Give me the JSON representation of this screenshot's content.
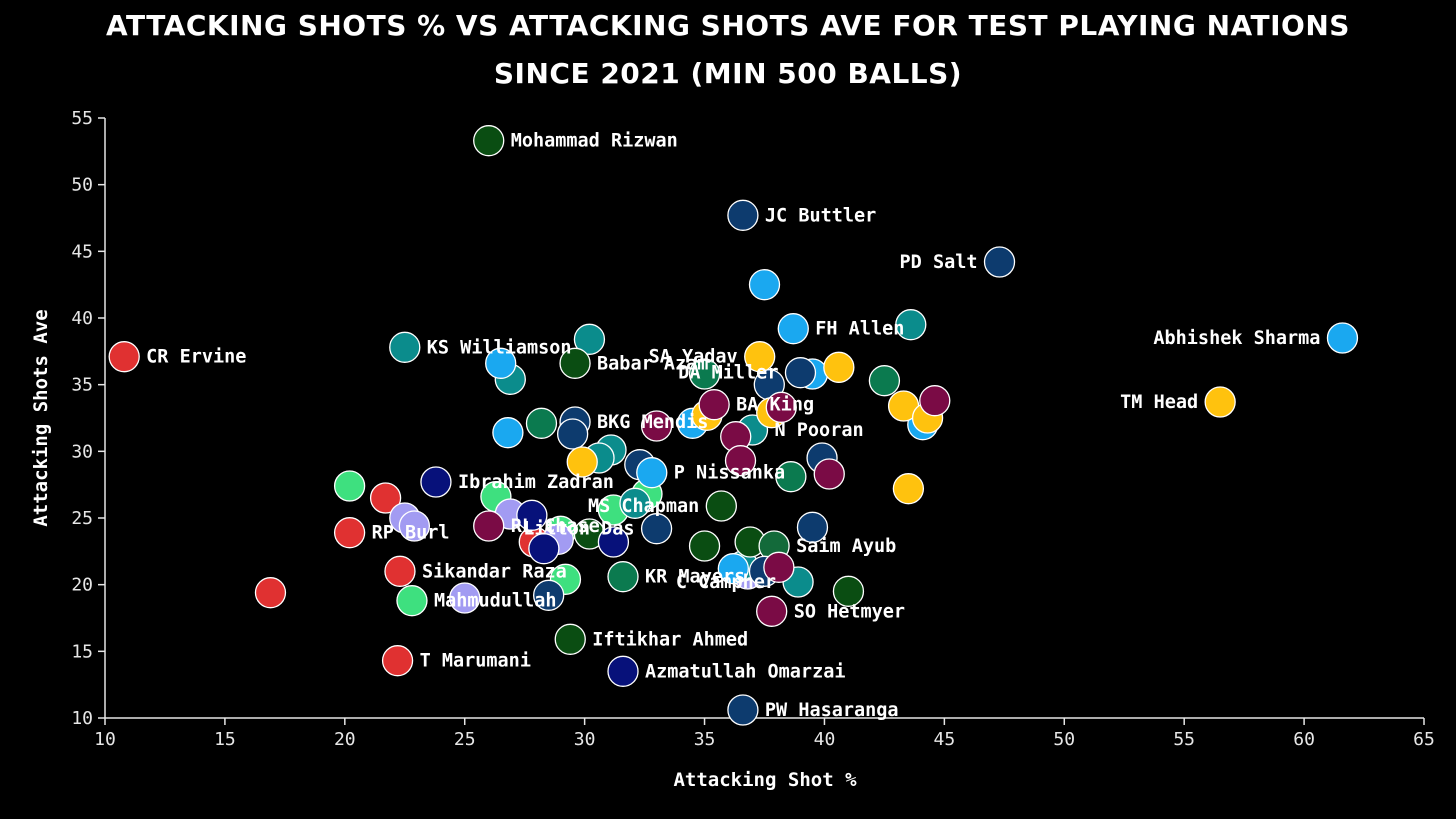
{
  "chart_data": {
    "type": "scatter",
    "title": "ATTACKING SHOTS  % VS ATTACKING SHOTS AVE FOR TEST PLAYING NATIONS SINCE 2021 (MIN 500 BALLS)",
    "xlabel": "Attacking Shot %",
    "ylabel": "Attacking Shots Ave",
    "xlim": [
      10,
      65
    ],
    "ylim": [
      10,
      55
    ],
    "x_ticks": [
      "10",
      "15",
      "20",
      "25",
      "30",
      "35",
      "40",
      "45",
      "50",
      "55",
      "60",
      "65"
    ],
    "y_ticks": [
      "10",
      "15",
      "20",
      "25",
      "30",
      "35",
      "40",
      "45",
      "50",
      "55"
    ],
    "grid": false,
    "legend": "none",
    "colors": {
      "zimbabwe": "#e03131",
      "afghanistan": "#07117a",
      "india": "#ffc20e",
      "england": "#0d3b6e",
      "australia": "#1aa8f0",
      "new_zealand": "#0b8c8c",
      "pakistan": "#0a4d12",
      "bangladesh": "#0b7a4f",
      "west_indies": "#7a0b45",
      "ireland": "#3ee07f",
      "south_africa": "#136a3a",
      "sri_lanka": "#a29bf2"
    },
    "points": [
      {
        "x": 10.8,
        "y": 37.1,
        "color": "#e03131",
        "label": "CR Ervine",
        "pos": "right"
      },
      {
        "x": 16.9,
        "y": 19.4,
        "color": "#e03131",
        "label": "",
        "pos": "right"
      },
      {
        "x": 20.2,
        "y": 23.9,
        "color": "#e03131",
        "label": "RP Burl",
        "pos": "right"
      },
      {
        "x": 21.7,
        "y": 26.5,
        "color": "#e03131",
        "label": "",
        "pos": "right"
      },
      {
        "x": 22.3,
        "y": 21.0,
        "color": "#e03131",
        "label": "Sikandar Raza",
        "pos": "right"
      },
      {
        "x": 22.2,
        "y": 14.3,
        "color": "#e03131",
        "label": "T Marumani",
        "pos": "right"
      },
      {
        "x": 27.9,
        "y": 23.2,
        "color": "#e03131",
        "label": "",
        "pos": "right"
      },
      {
        "x": 20.2,
        "y": 27.4,
        "color": "#3ee07f",
        "label": "",
        "pos": "right"
      },
      {
        "x": 22.8,
        "y": 18.8,
        "color": "#3ee07f",
        "label": "Mahmudullah",
        "pos": "right"
      },
      {
        "x": 26.3,
        "y": 26.6,
        "color": "#3ee07f",
        "label": "",
        "pos": "right"
      },
      {
        "x": 29.2,
        "y": 20.4,
        "color": "#3ee07f",
        "label": "",
        "pos": "right"
      },
      {
        "x": 31.2,
        "y": 25.6,
        "color": "#3ee07f",
        "label": "",
        "pos": "right"
      },
      {
        "x": 32.6,
        "y": 26.8,
        "color": "#3ee07f",
        "label": "",
        "pos": "right"
      },
      {
        "x": 29.0,
        "y": 24.0,
        "color": "#3ee07f",
        "label": "",
        "pos": "right"
      },
      {
        "x": 22.5,
        "y": 25.0,
        "color": "#a29bf2",
        "label": "",
        "pos": "right"
      },
      {
        "x": 22.9,
        "y": 24.4,
        "color": "#a29bf2",
        "label": "",
        "pos": "right"
      },
      {
        "x": 25.0,
        "y": 19.0,
        "color": "#a29bf2",
        "label": "",
        "pos": "right"
      },
      {
        "x": 26.9,
        "y": 25.3,
        "color": "#a29bf2",
        "label": "",
        "pos": "right"
      },
      {
        "x": 28.9,
        "y": 23.4,
        "color": "#a29bf2",
        "label": "",
        "pos": "right"
      },
      {
        "x": 36.8,
        "y": 20.8,
        "color": "#a29bf2",
        "label": "",
        "pos": "right"
      },
      {
        "x": 22.5,
        "y": 37.8,
        "color": "#0b8c8c",
        "label": "KS Williamson",
        "pos": "right"
      },
      {
        "x": 26.9,
        "y": 35.4,
        "color": "#0b8c8c",
        "label": "",
        "pos": "right"
      },
      {
        "x": 30.2,
        "y": 38.4,
        "color": "#0b8c8c",
        "label": "",
        "pos": "right"
      },
      {
        "x": 31.1,
        "y": 30.1,
        "color": "#0b8c8c",
        "label": "",
        "pos": "right"
      },
      {
        "x": 30.6,
        "y": 29.5,
        "color": "#0b8c8c",
        "label": "",
        "pos": "right"
      },
      {
        "x": 32.1,
        "y": 26.1,
        "color": "#0b8c8c",
        "label": "",
        "pos": "right"
      },
      {
        "x": 37.0,
        "y": 31.6,
        "color": "#0b8c8c",
        "label": "N Pooran",
        "pos": "right"
      },
      {
        "x": 38.9,
        "y": 20.2,
        "color": "#0b8c8c",
        "label": "C Campher",
        "pos": "left"
      },
      {
        "x": 43.6,
        "y": 39.5,
        "color": "#0b8c8c",
        "label": "",
        "pos": "right"
      },
      {
        "x": 36.6,
        "y": 21.4,
        "color": "#0b8c8c",
        "label": "",
        "pos": "right"
      },
      {
        "x": 26.0,
        "y": 53.3,
        "color": "#0a4d12",
        "label": "Mohammad Rizwan",
        "pos": "right"
      },
      {
        "x": 29.6,
        "y": 36.6,
        "color": "#0a4d12",
        "label": "Babar Azam",
        "pos": "right"
      },
      {
        "x": 30.2,
        "y": 23.8,
        "color": "#0a4d12",
        "label": "",
        "pos": "right"
      },
      {
        "x": 29.4,
        "y": 15.9,
        "color": "#0a4d12",
        "label": "Iftikhar Ahmed",
        "pos": "right"
      },
      {
        "x": 35.0,
        "y": 22.9,
        "color": "#0a4d12",
        "label": "",
        "pos": "right"
      },
      {
        "x": 35.7,
        "y": 25.9,
        "color": "#0a4d12",
        "label": "MS Chapman",
        "pos": "left"
      },
      {
        "x": 36.9,
        "y": 23.2,
        "color": "#0a4d12",
        "label": "",
        "pos": "right"
      },
      {
        "x": 41.0,
        "y": 19.5,
        "color": "#0a4d12",
        "label": "",
        "pos": "right"
      },
      {
        "x": 28.2,
        "y": 32.1,
        "color": "#0b7a4f",
        "label": "",
        "pos": "right"
      },
      {
        "x": 31.6,
        "y": 20.6,
        "color": "#0b7a4f",
        "label": "KR Mayers",
        "pos": "right"
      },
      {
        "x": 35.0,
        "y": 35.8,
        "color": "#0b7a4f",
        "label": "",
        "pos": "right"
      },
      {
        "x": 38.6,
        "y": 28.1,
        "color": "#0b7a4f",
        "label": "",
        "pos": "right"
      },
      {
        "x": 42.5,
        "y": 35.3,
        "color": "#0b7a4f",
        "label": "",
        "pos": "right"
      },
      {
        "x": 37.9,
        "y": 22.9,
        "color": "#136a3a",
        "label": "Saim Ayub",
        "pos": "right"
      },
      {
        "x": 23.8,
        "y": 27.7,
        "color": "#07117a",
        "label": "Ibrahim Zadran",
        "pos": "right"
      },
      {
        "x": 27.8,
        "y": 25.2,
        "color": "#07117a",
        "label": "",
        "pos": "right"
      },
      {
        "x": 31.2,
        "y": 23.2,
        "color": "#07117a",
        "label": "",
        "pos": "right"
      },
      {
        "x": 28.3,
        "y": 22.7,
        "color": "#07117a",
        "label": "",
        "pos": "right"
      },
      {
        "x": 31.6,
        "y": 13.5,
        "color": "#07117a",
        "label": "Azmatullah Omarzai",
        "pos": "right"
      },
      {
        "x": 36.6,
        "y": 47.7,
        "color": "#0d3b6e",
        "label": "JC Buttler",
        "pos": "right"
      },
      {
        "x": 47.3,
        "y": 44.2,
        "color": "#0d3b6e",
        "label": "PD Salt",
        "pos": "left"
      },
      {
        "x": 29.6,
        "y": 32.2,
        "color": "#0d3b6e",
        "label": "BKG Mendis",
        "pos": "right"
      },
      {
        "x": 29.5,
        "y": 31.3,
        "color": "#0d3b6e",
        "label": "",
        "pos": "right"
      },
      {
        "x": 32.3,
        "y": 29.0,
        "color": "#0d3b6e",
        "label": "",
        "pos": "right"
      },
      {
        "x": 33.0,
        "y": 24.2,
        "color": "#0d3b6e",
        "label": "Litton Das",
        "pos": "left"
      },
      {
        "x": 28.5,
        "y": 19.2,
        "color": "#0d3b6e",
        "label": "",
        "pos": "right"
      },
      {
        "x": 37.7,
        "y": 35.0,
        "color": "#0d3b6e",
        "label": "",
        "pos": "right"
      },
      {
        "x": 39.9,
        "y": 29.5,
        "color": "#0d3b6e",
        "label": "",
        "pos": "right"
      },
      {
        "x": 39.5,
        "y": 24.3,
        "color": "#0d3b6e",
        "label": "",
        "pos": "right"
      },
      {
        "x": 37.5,
        "y": 21.0,
        "color": "#0d3b6e",
        "label": "",
        "pos": "right"
      },
      {
        "x": 36.6,
        "y": 10.6,
        "color": "#0d3b6e",
        "label": "PW Hasaranga",
        "pos": "right"
      },
      {
        "x": 37.5,
        "y": 42.5,
        "color": "#1aa8f0",
        "label": "",
        "pos": "right"
      },
      {
        "x": 38.7,
        "y": 39.2,
        "color": "#1aa8f0",
        "label": "FH Allen",
        "pos": "right"
      },
      {
        "x": 26.5,
        "y": 36.6,
        "color": "#1aa8f0",
        "label": "",
        "pos": "right"
      },
      {
        "x": 26.8,
        "y": 31.4,
        "color": "#1aa8f0",
        "label": "",
        "pos": "right"
      },
      {
        "x": 34.5,
        "y": 32.1,
        "color": "#1aa8f0",
        "label": "",
        "pos": "right"
      },
      {
        "x": 32.8,
        "y": 28.4,
        "color": "#1aa8f0",
        "label": "P Nissanka",
        "pos": "right"
      },
      {
        "x": 39.5,
        "y": 35.8,
        "color": "#1aa8f0",
        "label": "",
        "pos": "right"
      },
      {
        "x": 44.1,
        "y": 32.0,
        "color": "#1aa8f0",
        "label": "",
        "pos": "right"
      },
      {
        "x": 36.2,
        "y": 21.2,
        "color": "#1aa8f0",
        "label": "",
        "pos": "right"
      },
      {
        "x": 61.6,
        "y": 38.5,
        "color": "#1aa8f0",
        "label": "Abhishek Sharma",
        "pos": "left"
      },
      {
        "x": 37.3,
        "y": 37.1,
        "color": "#ffc20e",
        "label": "SA Yadav",
        "pos": "left"
      },
      {
        "x": 40.6,
        "y": 36.3,
        "color": "#ffc20e",
        "label": "",
        "pos": "right"
      },
      {
        "x": 35.1,
        "y": 32.7,
        "color": "#ffc20e",
        "label": "",
        "pos": "right"
      },
      {
        "x": 37.8,
        "y": 32.9,
        "color": "#ffc20e",
        "label": "",
        "pos": "right"
      },
      {
        "x": 43.3,
        "y": 33.4,
        "color": "#ffc20e",
        "label": "",
        "pos": "right"
      },
      {
        "x": 44.3,
        "y": 32.5,
        "color": "#ffc20e",
        "label": "",
        "pos": "right"
      },
      {
        "x": 29.9,
        "y": 29.2,
        "color": "#ffc20e",
        "label": "",
        "pos": "right"
      },
      {
        "x": 43.5,
        "y": 27.2,
        "color": "#ffc20e",
        "label": "",
        "pos": "right"
      },
      {
        "x": 56.5,
        "y": 33.7,
        "color": "#ffc20e",
        "label": "TM Head",
        "pos": "left"
      },
      {
        "x": 35.4,
        "y": 33.5,
        "color": "#7a0b45",
        "label": "BA King",
        "pos": "right"
      },
      {
        "x": 38.2,
        "y": 33.3,
        "color": "#7a0b45",
        "label": "",
        "pos": "right"
      },
      {
        "x": 36.3,
        "y": 31.1,
        "color": "#7a0b45",
        "label": "",
        "pos": "right"
      },
      {
        "x": 36.5,
        "y": 29.3,
        "color": "#7a0b45",
        "label": "",
        "pos": "right"
      },
      {
        "x": 40.2,
        "y": 28.3,
        "color": "#7a0b45",
        "label": "",
        "pos": "right"
      },
      {
        "x": 44.6,
        "y": 33.8,
        "color": "#7a0b45",
        "label": "",
        "pos": "right"
      },
      {
        "x": 33.0,
        "y": 31.9,
        "color": "#7a0b45",
        "label": "",
        "pos": "right"
      },
      {
        "x": 26.0,
        "y": 24.4,
        "color": "#7a0b45",
        "label": "RL Chase",
        "pos": "right"
      },
      {
        "x": 37.8,
        "y": 18.0,
        "color": "#7a0b45",
        "label": "SO Hetmyer",
        "pos": "right"
      },
      {
        "x": 38.1,
        "y": 21.3,
        "color": "#7a0b45",
        "label": "",
        "pos": "right"
      },
      {
        "x": 39.0,
        "y": 35.9,
        "color": "#0d3b6e",
        "label": "DA Miller",
        "pos": "left"
      }
    ]
  }
}
